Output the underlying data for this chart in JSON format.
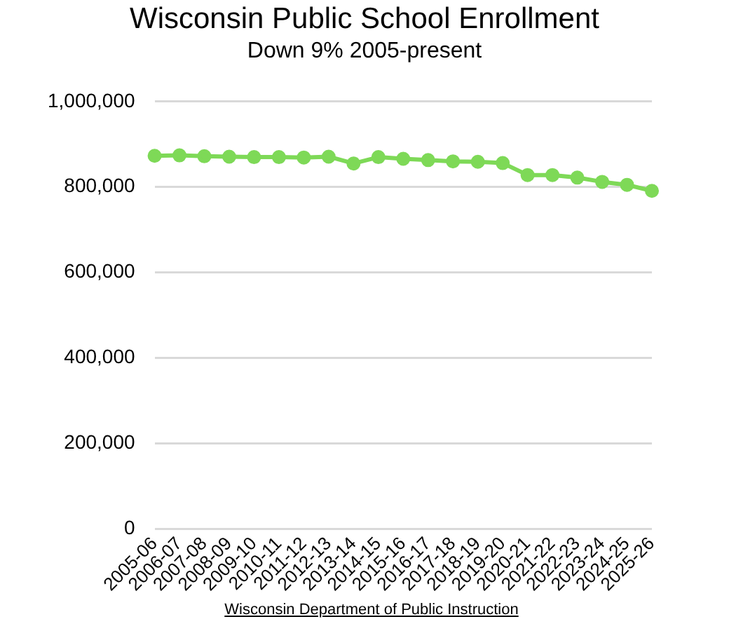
{
  "chart_data": {
    "type": "line",
    "title": "Wisconsin Public School Enrollment",
    "subtitle": "Down 9% 2005-present",
    "categories": [
      "2005-06",
      "2006-07",
      "2007-08",
      "2008-09",
      "2009-10",
      "2010-11",
      "2011-12",
      "2012-13",
      "2013-14",
      "2014-15",
      "2015-16",
      "2016-17",
      "2017-18",
      "2018-19",
      "2019-20",
      "2020-21",
      "2021-22",
      "2022-23",
      "2023-24",
      "2024-25",
      "2025-26"
    ],
    "series": [
      {
        "color": "#7ed957",
        "values": [
          873000,
          874000,
          872000,
          871000,
          870000,
          870000,
          869000,
          871000,
          855000,
          870000,
          866000,
          863000,
          860000,
          859000,
          856000,
          828000,
          828000,
          822000,
          812000,
          805000,
          791000
        ]
      }
    ],
    "ylim": [
      0,
      1000000
    ],
    "yticks": [
      0,
      {
        "value": 200000,
        "label": "200,000"
      },
      {
        "value": 400000,
        "label": "400,000"
      },
      {
        "value": 600000,
        "label": "600,000"
      },
      {
        "value": 800000,
        "label": "800,000"
      },
      {
        "value": 1000000,
        "label": "1,000,000"
      }
    ],
    "grid": "y",
    "legend": false,
    "marker": "circle",
    "line_style": "solid",
    "annotations": [
      "Wisconsin Department of Public Instruction"
    ]
  }
}
